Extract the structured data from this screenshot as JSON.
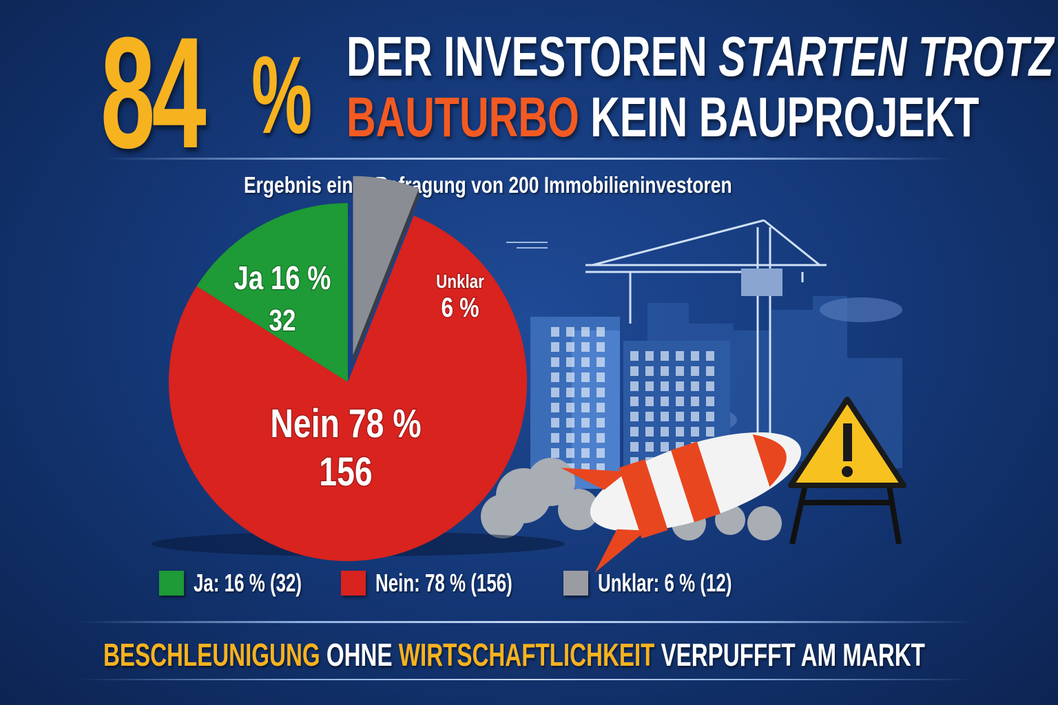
{
  "headline": {
    "big_number": "84",
    "percent_sign": "%",
    "line1_a": "DER INVESTOREN",
    "line1_b": "STARTEN TROTZ",
    "line2_a": "BAUTURBO",
    "line2_b": "KEIN BAUPROJEKT"
  },
  "subtitle": "Ergebnis einer Befragung von 200 Immobilieninvestoren",
  "chart_data": {
    "type": "pie",
    "total": 200,
    "slices": [
      {
        "name": "Ja",
        "percent": 16,
        "count": 32,
        "color": "#1e9a36",
        "label_pct": "Ja 16 %",
        "label_count": "32",
        "exploded": false
      },
      {
        "name": "Unklar",
        "percent": 6,
        "count": 12,
        "color": "#8a8d93",
        "label_pct": "Unklar",
        "label_count": "6 %",
        "exploded": true
      },
      {
        "name": "Nein",
        "percent": 78,
        "count": 156,
        "color": "#d8231f",
        "label_pct": "Nein 78 %",
        "label_count": "156",
        "exploded": false
      }
    ],
    "legend": [
      {
        "label": "Ja: 16 % (32)",
        "color": "#1e9a36"
      },
      {
        "label": "Nein: 78 % (156)",
        "color": "#d8231f"
      },
      {
        "label": "Unklar: 6 % (12)",
        "color": "#9a9ca1"
      }
    ],
    "legend_position": "bottom"
  },
  "footer": {
    "part1": "BESCHLEUNIGUNG",
    "part2": "OHNE",
    "part3": "WIRTSCHAFTLICHKEIT",
    "part4": "VERPUFFFT AM MARKT"
  },
  "colors": {
    "accent_yellow": "#f7b21f",
    "accent_orange": "#f35a22",
    "background": "#15397a"
  }
}
